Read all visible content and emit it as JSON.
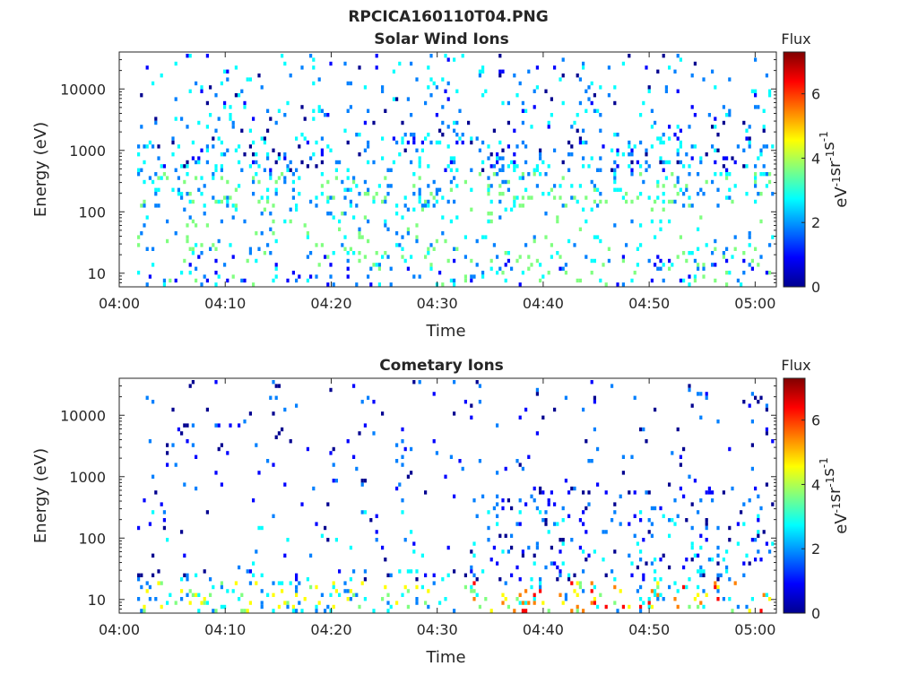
{
  "figure_title": "RPCICA160110T04.PNG",
  "colormap": [
    "#00008f",
    "#0000ff",
    "#0080ff",
    "#00ffff",
    "#80ff80",
    "#ffff00",
    "#ff8000",
    "#ff0000",
    "#800000"
  ],
  "chart_data": [
    {
      "type": "heatmap",
      "title": "Solar Wind Ions",
      "xlabel": "Time",
      "ylabel": "Energy (eV)",
      "x_ticks": [
        "04:00",
        "04:10",
        "04:20",
        "04:30",
        "04:40",
        "04:50",
        "05:00"
      ],
      "x_range": [
        "04:00",
        "05:02"
      ],
      "y_scale": "log",
      "y_ticks": [
        "10",
        "100",
        "1000",
        "10000"
      ],
      "y_range": [
        6,
        40000
      ],
      "colorbar": {
        "title": "Flux",
        "label": "eV-1cm-2sr-1s-1",
        "ticks": [
          "0",
          "2",
          "4",
          "6"
        ],
        "range": [
          0,
          7.3
        ]
      },
      "seed": 11
    },
    {
      "type": "heatmap",
      "title": "Cometary Ions",
      "xlabel": "Time",
      "ylabel": "Energy (eV)",
      "x_ticks": [
        "04:00",
        "04:10",
        "04:20",
        "04:30",
        "04:40",
        "04:50",
        "05:00"
      ],
      "x_range": [
        "04:00",
        "05:02"
      ],
      "y_scale": "log",
      "y_ticks": [
        "10",
        "100",
        "1000",
        "10000"
      ],
      "y_range": [
        6,
        40000
      ],
      "colorbar": {
        "title": "Flux",
        "label": "eV-1cm-2sr-1s-1",
        "ticks": [
          "0",
          "2",
          "4",
          "6"
        ],
        "range": [
          0,
          7.3
        ]
      },
      "seed": 29
    }
  ]
}
